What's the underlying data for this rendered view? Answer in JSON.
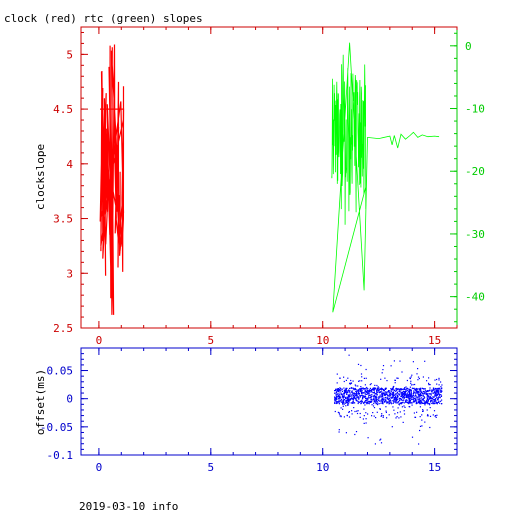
{
  "chart_data": [
    {
      "type": "line",
      "title": "clock (red) rtc (green) slopes",
      "ylabel": "clockslope",
      "xlim": [
        -0.8,
        16
      ],
      "x_ticks": [
        0,
        5,
        10,
        15
      ],
      "ylim_left": [
        2.5,
        5.25
      ],
      "y_ticks_left": [
        2.5,
        3,
        3.5,
        4,
        4.5,
        5
      ],
      "ylim_right": [
        -45,
        3
      ],
      "y_ticks_right": [
        0,
        -10,
        -20,
        -30,
        -40
      ],
      "colors": {
        "left_axis": "#cc0000",
        "right_axis": "#00cc00",
        "frame": "#cc0000"
      },
      "series": [
        {
          "axis": "left",
          "color": "#ff0000",
          "x_range": [
            0,
            1.1
          ],
          "y_range": [
            2.62,
            5.1
          ],
          "approx_points": [
            [
              0.05,
              3.3
            ],
            [
              0.1,
              4.6
            ],
            [
              0.15,
              3.5
            ],
            [
              0.2,
              4.65
            ],
            [
              0.25,
              3.1
            ],
            [
              0.3,
              3.6
            ],
            [
              0.35,
              4.1
            ],
            [
              0.4,
              3.8
            ],
            [
              0.45,
              4.4
            ],
            [
              0.5,
              3.2
            ],
            [
              0.55,
              4.9
            ],
            [
              0.6,
              2.62
            ],
            [
              0.62,
              5.1
            ],
            [
              0.7,
              3.9
            ],
            [
              0.75,
              3.4
            ],
            [
              0.8,
              4.5
            ],
            [
              0.85,
              3.6
            ],
            [
              0.9,
              3.3
            ],
            [
              0.95,
              3.7
            ],
            [
              1.0,
              3.15
            ],
            [
              1.05,
              3.5
            ],
            [
              1.1,
              4.5
            ]
          ]
        },
        {
          "axis": "right",
          "color": "#00ff00",
          "x_range": [
            10.4,
            15.2
          ],
          "y_range": [
            -42.5,
            0.5
          ],
          "approx_points": [
            [
              10.4,
              -22
            ],
            [
              10.5,
              -16
            ],
            [
              10.6,
              -6
            ],
            [
              10.8,
              -20
            ],
            [
              11.0,
              -10
            ],
            [
              11.1,
              -26
            ],
            [
              11.2,
              0.5
            ],
            [
              11.4,
              -18
            ],
            [
              11.6,
              -8
            ],
            [
              11.8,
              -39
            ],
            [
              11.9,
              -15
            ],
            [
              12.0,
              -14.5
            ],
            [
              12.5,
              -14.8
            ],
            [
              13.0,
              -14.5
            ],
            [
              13.2,
              -16
            ],
            [
              13.4,
              -14.2
            ],
            [
              13.8,
              -14.6
            ],
            [
              14.0,
              -13.8
            ],
            [
              14.2,
              -14.5
            ],
            [
              14.6,
              -14.4
            ],
            [
              15.0,
              -14.5
            ],
            [
              15.2,
              -14.5
            ]
          ]
        }
      ]
    },
    {
      "type": "scatter",
      "ylabel": "offset(ms)",
      "xlim": [
        -0.8,
        16
      ],
      "x_ticks": [
        0,
        5,
        10,
        15
      ],
      "ylim": [
        -0.1,
        0.09
      ],
      "y_ticks": [
        0.05,
        0,
        -0.05,
        -0.1
      ],
      "colors": {
        "points": "#0000ff",
        "axis": "#0000cc"
      },
      "series": [
        {
          "color": "#0000ff",
          "x_range": [
            10.5,
            15.3
          ],
          "dense_band": [
            -0.01,
            0.02
          ],
          "outlier_range": [
            -0.08,
            0.08
          ]
        }
      ]
    }
  ],
  "footer": {
    "text": "2019-03-10 info"
  }
}
